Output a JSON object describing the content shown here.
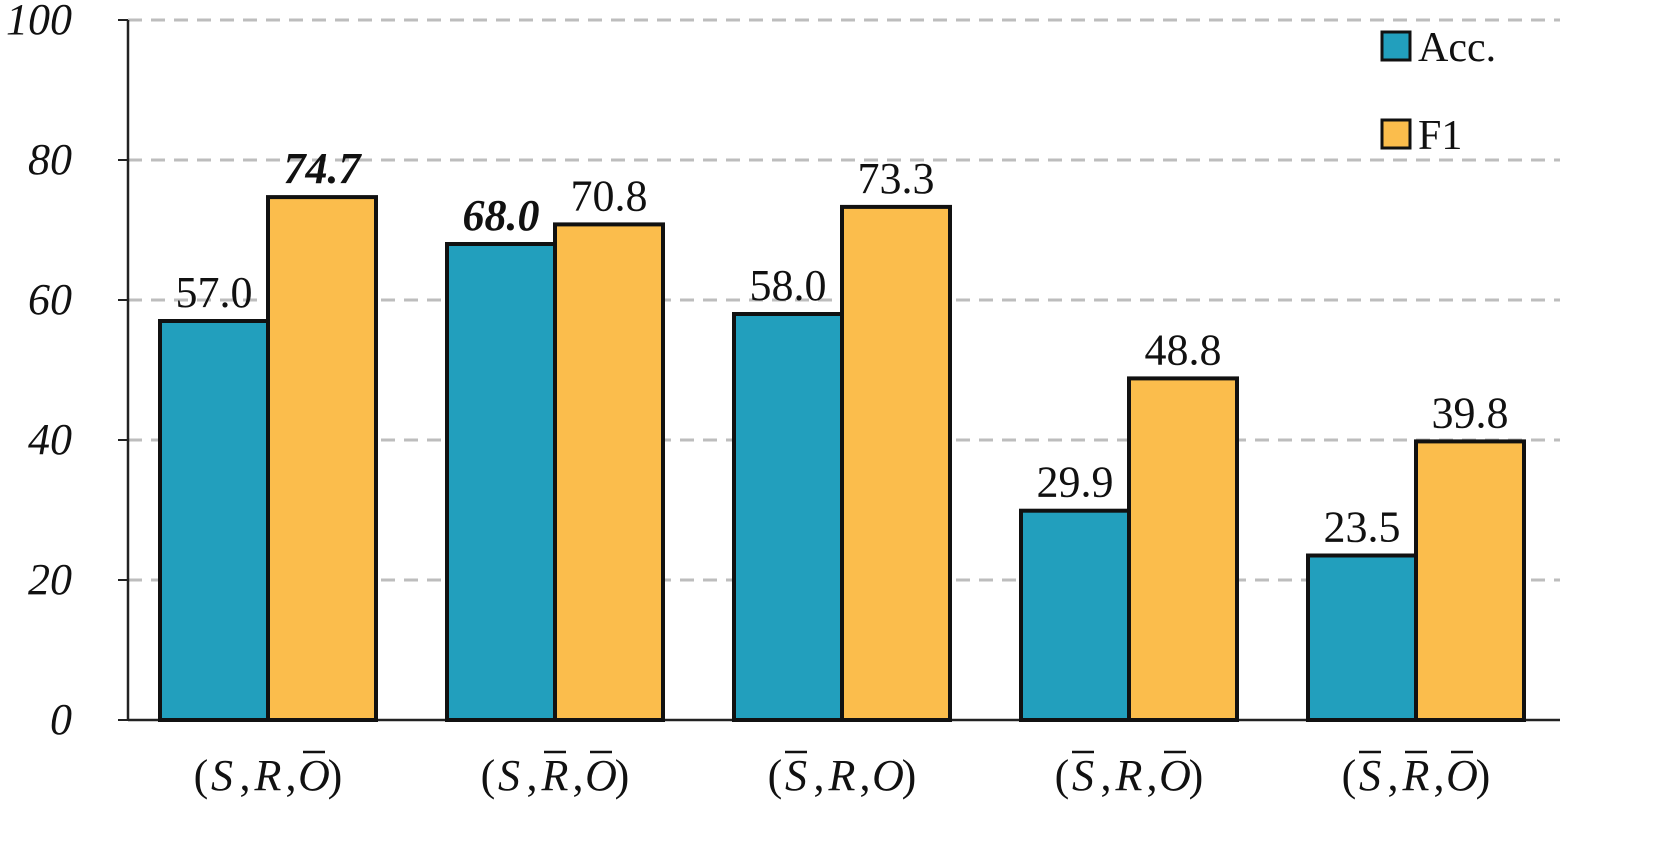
{
  "chart_data": {
    "type": "bar",
    "categories": [
      {
        "open": "(",
        "parts": [
          {
            "t": "S",
            "bar": false
          },
          {
            "t": "R",
            "bar": false
          },
          {
            "t": "O",
            "bar": true
          }
        ],
        "close": ")"
      },
      {
        "open": "(",
        "parts": [
          {
            "t": "S",
            "bar": false
          },
          {
            "t": "R",
            "bar": true
          },
          {
            "t": "O",
            "bar": true
          }
        ],
        "close": ")"
      },
      {
        "open": "(",
        "parts": [
          {
            "t": "S",
            "bar": true
          },
          {
            "t": "R",
            "bar": false
          },
          {
            "t": "O",
            "bar": false
          }
        ],
        "close": ")"
      },
      {
        "open": "(",
        "parts": [
          {
            "t": "S",
            "bar": true
          },
          {
            "t": "R",
            "bar": false
          },
          {
            "t": "O",
            "bar": true
          }
        ],
        "close": ")"
      },
      {
        "open": "(",
        "parts": [
          {
            "t": "S",
            "bar": true
          },
          {
            "t": "R",
            "bar": true
          },
          {
            "t": "O",
            "bar": true
          }
        ],
        "close": ")"
      }
    ],
    "series": [
      {
        "name": "Acc.",
        "color": "#229fbd",
        "values": [
          57.0,
          68.0,
          58.0,
          29.9,
          23.5
        ],
        "labels": [
          "57.0",
          "68.0",
          "58.0",
          "29.9",
          "23.5"
        ],
        "bold_index": 1
      },
      {
        "name": "F1",
        "color": "#fbbd4c",
        "values": [
          74.7,
          70.8,
          73.3,
          48.8,
          39.8
        ],
        "labels": [
          "74.7",
          "70.8",
          "73.3",
          "48.8",
          "39.8"
        ],
        "bold_index": 0
      }
    ],
    "ylim": [
      0,
      100
    ],
    "yticks": [
      0,
      20,
      40,
      60,
      80,
      100
    ],
    "ytick_labels": [
      "0",
      "20",
      "40",
      "60",
      "80",
      "100"
    ],
    "grid": "horizontal-dashed",
    "legend_position": "top-right",
    "title": "",
    "xlabel": "",
    "ylabel": ""
  }
}
